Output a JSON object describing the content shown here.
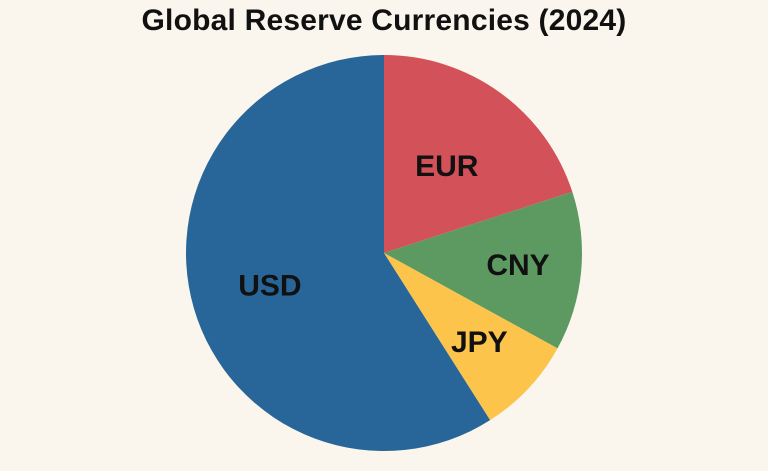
{
  "page": {
    "background": "#faf6ee"
  },
  "chart_data": {
    "type": "pie",
    "title": "Global Reserve Currencies (2024)",
    "labels": [
      "EUR",
      "CNY",
      "JPY",
      "USD"
    ],
    "values": [
      20,
      13,
      8,
      59
    ],
    "colors": [
      "#d35158",
      "#5c9a61",
      "#fcc44a",
      "#286699"
    ],
    "start_angle": "12 o'clock",
    "direction": "clockwise",
    "legend": "none (slices labeled directly)"
  }
}
